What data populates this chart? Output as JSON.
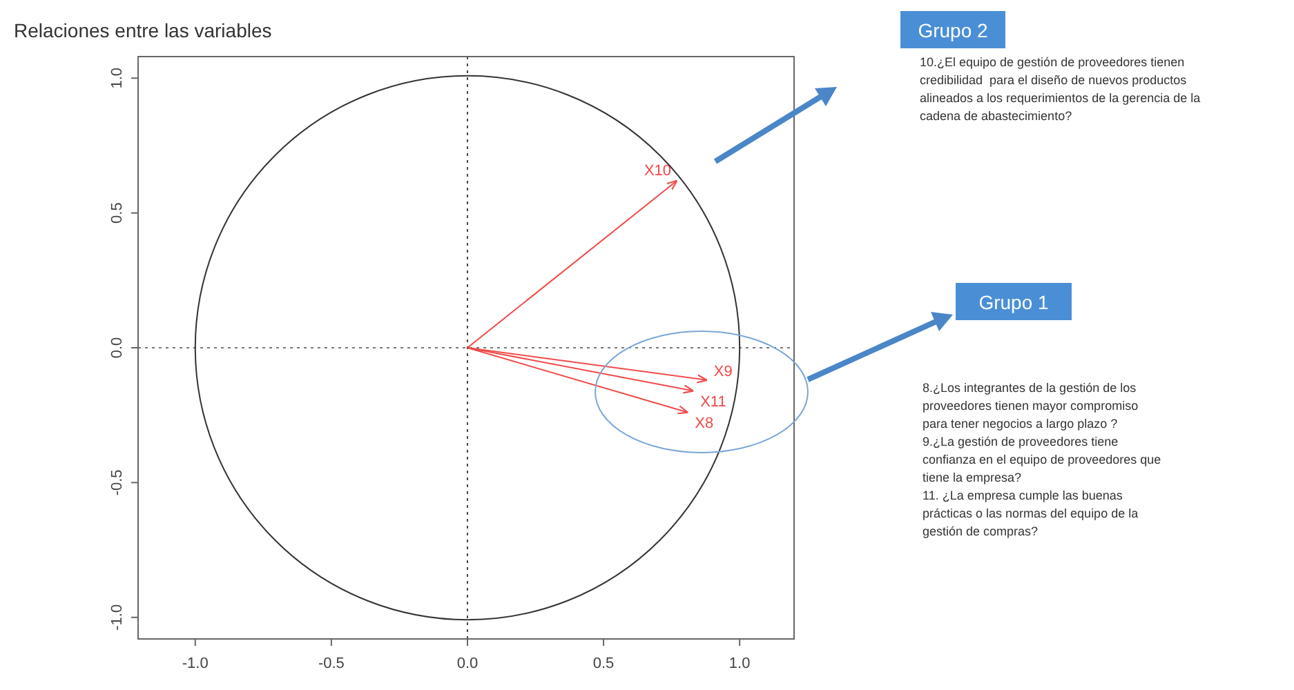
{
  "chart_data": {
    "type": "line",
    "title": "Relaciones entre las variables",
    "xlim": [
      -1.21,
      1.2
    ],
    "ylim": [
      -1.08,
      1.08
    ],
    "xticks": [
      {
        "value": -1,
        "label": "-1.0"
      },
      {
        "value": -0.5,
        "label": "-0.5"
      },
      {
        "value": 0,
        "label": "0.0"
      },
      {
        "value": 0.5,
        "label": "0.5"
      },
      {
        "value": 1,
        "label": "1.0"
      }
    ],
    "yticks": [
      {
        "value": -1,
        "label": "-1.0"
      },
      {
        "value": -0.5,
        "label": "-0.5"
      },
      {
        "value": 0,
        "label": "0.0"
      },
      {
        "value": 0.5,
        "label": "0.5"
      },
      {
        "value": 1,
        "label": "1.0"
      }
    ],
    "grid": false,
    "marker": "none",
    "series": [
      {
        "name": "X10",
        "color": "#f04a4a",
        "x": [
          0,
          0.77
        ],
        "values": [
          0,
          0.62
        ]
      },
      {
        "name": "X9",
        "color": "#f04a4a",
        "x": [
          0,
          0.88
        ],
        "values": [
          0,
          -0.12
        ]
      },
      {
        "name": "X11",
        "color": "#f04a4a",
        "x": [
          0,
          0.83
        ],
        "values": [
          0,
          -0.16
        ]
      },
      {
        "name": "X8",
        "color": "#f04a4a",
        "x": [
          0,
          0.81
        ],
        "values": [
          0,
          -0.24
        ]
      }
    ],
    "ref_lines": [
      {
        "axis": "x",
        "value": 0,
        "color": "#444444",
        "line_style": "dotted"
      },
      {
        "axis": "y",
        "value": 0,
        "color": "#777777",
        "line_style": "dotted"
      }
    ],
    "annotations": [
      "Grupo 2",
      "10.¿El equipo de gestión de proveedores tienen\ncredibilidad  para el diseño de nuevos productos\nalineados a los requerimientos de la gerencia de la\ncadena de abastecimiento?",
      "Grupo 1",
      "8.¿Los integrantes de la gestión de los\nproveedores tienen mayor compromiso\npara tener negocios a largo plazo ?\n9.¿La gestión de proveedores tiene\nconfianza en el equipo de proveedores que\ntiene la empresa?\n11. ¿La empresa cumple las buenas\nprácticas o las normas del equipo de la\ngestión de compras?"
    ]
  }
}
